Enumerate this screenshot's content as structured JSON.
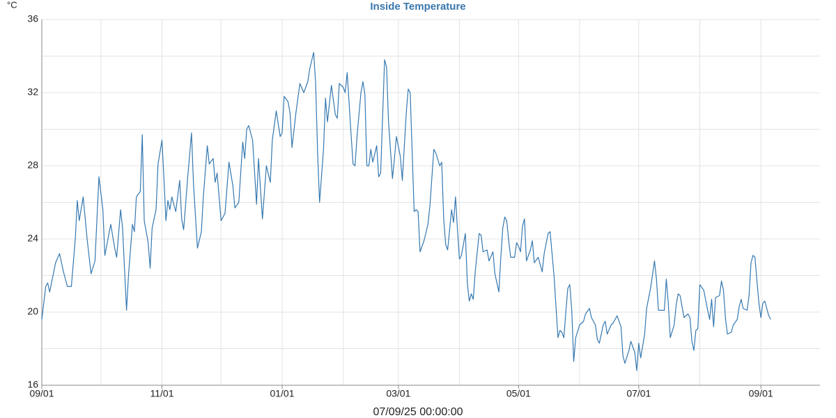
{
  "chart_data": {
    "type": "line",
    "title": "Inside Temperature",
    "y_unit": "°C",
    "x_label": "07/09/25 00:00:00",
    "xlim": [
      0,
      395
    ],
    "xticks": [
      {
        "value": 0,
        "label": "09/01"
      },
      {
        "value": 61,
        "label": "11/01"
      },
      {
        "value": 122,
        "label": "01/01"
      },
      {
        "value": 181,
        "label": "03/01"
      },
      {
        "value": 242,
        "label": "05/01"
      },
      {
        "value": 303,
        "label": "07/01"
      },
      {
        "value": 365,
        "label": "09/01"
      }
    ],
    "x_minor_grid": [
      30,
      91,
      153,
      212,
      273,
      334
    ],
    "ylim": [
      16,
      36
    ],
    "yticks": [
      16,
      20,
      24,
      28,
      32,
      36
    ],
    "y_minor_grid": [
      18,
      22,
      26,
      30,
      34
    ],
    "grid": true,
    "series": [
      {
        "name": "Inside Temperature",
        "color": "#3478b0",
        "x": [
          0,
          2,
          3,
          4,
          7,
          9,
          11,
          13,
          15,
          17,
          18,
          19,
          21,
          23,
          25,
          27,
          29,
          31,
          32,
          35,
          37,
          38,
          40,
          41,
          43,
          44,
          46,
          47,
          48,
          50,
          51,
          52,
          54,
          55,
          56,
          58,
          59,
          61,
          62,
          63,
          64,
          65,
          66,
          68,
          70,
          71,
          72,
          74,
          76,
          77,
          79,
          81,
          82,
          84,
          85,
          87,
          88,
          89,
          91,
          93,
          95,
          97,
          98,
          100,
          102,
          103,
          104,
          105,
          107,
          109,
          110,
          112,
          114,
          116,
          117,
          119,
          121,
          122,
          123,
          125,
          126,
          127,
          129,
          131,
          133,
          135,
          136,
          138,
          139,
          140,
          141,
          143,
          144,
          145,
          147,
          149,
          150,
          151,
          153,
          154,
          155,
          157,
          158,
          159,
          160,
          162,
          163,
          164,
          165,
          166,
          167,
          168,
          170,
          171,
          172,
          174,
          175,
          176,
          178,
          179,
          180,
          182,
          183,
          185,
          186,
          187,
          189,
          190,
          191,
          192,
          194,
          196,
          197,
          199,
          200,
          202,
          203,
          204,
          205,
          206,
          208,
          209,
          210,
          211,
          212,
          213,
          215,
          216,
          217,
          218,
          219,
          220,
          222,
          223,
          224,
          226,
          227,
          229,
          230,
          232,
          233,
          234,
          235,
          236,
          237,
          238,
          240,
          241,
          242,
          243,
          244,
          245,
          246,
          248,
          249,
          250,
          252,
          254,
          255,
          257,
          258,
          260,
          261,
          262,
          263,
          264,
          265,
          266,
          267,
          268,
          269,
          270,
          271,
          273,
          275,
          276,
          278,
          279,
          281,
          282,
          283,
          285,
          286,
          287,
          289,
          290,
          292,
          294,
          295,
          296,
          298,
          299,
          301,
          302,
          303,
          304,
          306,
          307,
          309,
          311,
          312,
          313,
          316,
          317,
          318,
          319,
          321,
          322,
          323,
          324,
          326,
          328,
          329,
          330,
          331,
          332,
          333,
          334,
          336,
          338,
          339,
          340,
          341,
          342,
          344,
          345,
          346,
          347,
          348,
          350,
          351,
          353,
          354,
          355,
          356,
          358,
          359,
          360,
          361,
          362,
          363,
          364,
          365,
          366,
          367,
          369,
          370
        ],
        "values": [
          19.6,
          21.4,
          21.6,
          21.1,
          22.7,
          23.2,
          22.2,
          21.4,
          21.4,
          24.0,
          26.1,
          25.0,
          26.3,
          24.0,
          22.1,
          22.8,
          27.4,
          25.6,
          23.1,
          24.8,
          23.5,
          23.0,
          25.6,
          24.6,
          20.1,
          22.0,
          24.8,
          24.4,
          26.3,
          26.6,
          29.7,
          25.0,
          23.8,
          22.4,
          24.6,
          25.6,
          28.1,
          29.4,
          27.3,
          25.0,
          26.1,
          25.6,
          26.3,
          25.5,
          27.2,
          25.1,
          24.5,
          27.3,
          29.8,
          27.0,
          23.5,
          24.4,
          26.3,
          29.1,
          28.1,
          28.4,
          27.1,
          27.6,
          25.0,
          25.4,
          28.2,
          26.9,
          25.7,
          26.0,
          29.3,
          28.4,
          30.0,
          30.2,
          29.4,
          25.9,
          28.4,
          25.1,
          28.0,
          27.1,
          29.4,
          31.0,
          29.6,
          29.8,
          31.8,
          31.5,
          30.9,
          29.0,
          30.9,
          32.5,
          32.0,
          32.6,
          33.3,
          34.2,
          32.5,
          28.7,
          26.0,
          28.9,
          31.7,
          30.4,
          32.4,
          30.8,
          30.6,
          32.5,
          32.3,
          32.0,
          33.1,
          29.7,
          28.1,
          28.0,
          29.6,
          32.0,
          32.6,
          31.9,
          28.0,
          28.0,
          28.9,
          28.2,
          29.1,
          27.4,
          27.6,
          33.8,
          33.4,
          30.4,
          27.3,
          28.4,
          29.6,
          28.5,
          27.2,
          30.9,
          32.2,
          32.0,
          25.5,
          25.6,
          25.5,
          23.3,
          23.9,
          24.8,
          25.8,
          28.9,
          28.7,
          28.0,
          28.2,
          25.1,
          23.7,
          23.4,
          25.6,
          24.9,
          26.3,
          24.5,
          22.9,
          23.1,
          24.3,
          21.6,
          20.6,
          21.0,
          20.7,
          22.2,
          24.3,
          24.2,
          23.3,
          23.4,
          22.8,
          23.3,
          22.1,
          21.1,
          23.0,
          24.6,
          25.2,
          25.0,
          23.9,
          23.0,
          23.0,
          23.8,
          23.6,
          23.3,
          24.7,
          25.1,
          22.8,
          23.4,
          23.9,
          22.7,
          23.0,
          22.2,
          23.2,
          24.3,
          24.4,
          22.0,
          20.3,
          18.6,
          19.0,
          18.9,
          18.6,
          20.0,
          21.3,
          21.5,
          20.1,
          17.3,
          18.6,
          19.3,
          19.5,
          19.9,
          20.2,
          19.7,
          19.3,
          18.5,
          18.3,
          19.3,
          19.5,
          18.8,
          19.3,
          19.4,
          19.8,
          19.2,
          17.6,
          17.2,
          17.9,
          18.4,
          17.8,
          16.8,
          18.3,
          17.5,
          18.8,
          20.2,
          21.3,
          22.8,
          21.8,
          20.1,
          20.1,
          21.8,
          20.5,
          18.6,
          19.3,
          20.4,
          21.0,
          20.9,
          19.7,
          19.9,
          19.7,
          18.4,
          17.9,
          19.0,
          19.1,
          21.5,
          21.2,
          20.1,
          19.6,
          20.7,
          19.2,
          20.8,
          20.9,
          21.7,
          21.2,
          19.7,
          18.8,
          18.9,
          19.3,
          19.6,
          20.3,
          20.7,
          20.2,
          20.1,
          20.9,
          22.7,
          23.1,
          23.0,
          21.7,
          20.5,
          19.7,
          20.5,
          20.6,
          19.8,
          19.6
        ]
      }
    ]
  }
}
